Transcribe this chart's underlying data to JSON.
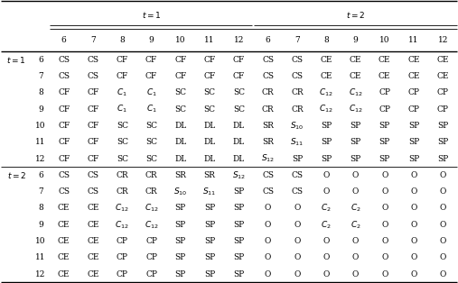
{
  "col_headers": [
    "6",
    "7",
    "8",
    "9",
    "10",
    "11",
    "12",
    "6",
    "7",
    "8",
    "9",
    "10",
    "11",
    "12"
  ],
  "row_headers": [
    "6",
    "7",
    "8",
    "9",
    "10",
    "11",
    "12",
    "6",
    "7",
    "8",
    "9",
    "10",
    "11",
    "12"
  ],
  "cells": [
    [
      "CS",
      "CS",
      "CF",
      "CF",
      "CF",
      "CF",
      "CF",
      "CS",
      "CS",
      "CE",
      "CE",
      "CE",
      "CE",
      "CE"
    ],
    [
      "CS",
      "CS",
      "CF",
      "CF",
      "CF",
      "CF",
      "CF",
      "CS",
      "CS",
      "CE",
      "CE",
      "CE",
      "CE",
      "CE"
    ],
    [
      "CF",
      "CF",
      "C_1",
      "C_1",
      "SC",
      "SC",
      "SC",
      "CR",
      "CR",
      "C_12",
      "C_12",
      "CP",
      "CP",
      "CP"
    ],
    [
      "CF",
      "CF",
      "C_1",
      "C_1",
      "SC",
      "SC",
      "SC",
      "CR",
      "CR",
      "C_12",
      "C_12",
      "CP",
      "CP",
      "CP"
    ],
    [
      "CF",
      "CF",
      "SC",
      "SC",
      "DL",
      "DL",
      "DL",
      "SR",
      "S_10",
      "SP",
      "SP",
      "SP",
      "SP",
      "SP"
    ],
    [
      "CF",
      "CF",
      "SC",
      "SC",
      "DL",
      "DL",
      "DL",
      "SR",
      "S_11",
      "SP",
      "SP",
      "SP",
      "SP",
      "SP"
    ],
    [
      "CF",
      "CF",
      "SC",
      "SC",
      "DL",
      "DL",
      "DL",
      "S_12",
      "SP",
      "SP",
      "SP",
      "SP",
      "SP",
      "SP"
    ],
    [
      "CS",
      "CS",
      "CR",
      "CR",
      "SR",
      "SR",
      "S_12",
      "CS",
      "CS",
      "O",
      "O",
      "O",
      "O",
      "O"
    ],
    [
      "CS",
      "CS",
      "CR",
      "CR",
      "S_10",
      "S_11",
      "SP",
      "CS",
      "CS",
      "O",
      "O",
      "O",
      "O",
      "O"
    ],
    [
      "CE",
      "CE",
      "C_12",
      "C_12",
      "SP",
      "SP",
      "SP",
      "O",
      "O",
      "C_2",
      "C_2",
      "O",
      "O",
      "O"
    ],
    [
      "CE",
      "CE",
      "C_12",
      "C_12",
      "SP",
      "SP",
      "SP",
      "O",
      "O",
      "C_2",
      "C_2",
      "O",
      "O",
      "O"
    ],
    [
      "CE",
      "CE",
      "CP",
      "CP",
      "SP",
      "SP",
      "SP",
      "O",
      "O",
      "O",
      "O",
      "O",
      "O",
      "O"
    ],
    [
      "CE",
      "CE",
      "CP",
      "CP",
      "SP",
      "SP",
      "SP",
      "O",
      "O",
      "O",
      "O",
      "O",
      "O",
      "O"
    ],
    [
      "CE",
      "CE",
      "CP",
      "CP",
      "SP",
      "SP",
      "SP",
      "O",
      "O",
      "O",
      "O",
      "O",
      "O",
      "O"
    ]
  ],
  "fontsize": 6.5,
  "bg_color": "#ffffff",
  "text_color": "#000000",
  "line_color": "#000000"
}
